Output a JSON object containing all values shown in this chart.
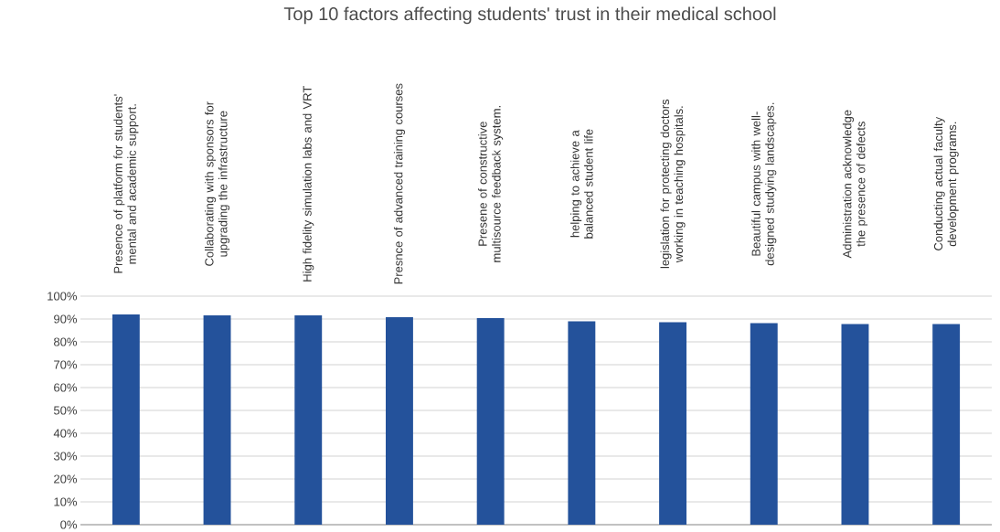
{
  "chart_data": {
    "type": "bar",
    "title": "Top 10 factors affecting students' trust in their medical school",
    "categories": [
      "Presence of platform for students' mental and academic support.",
      "Collaborating with sponsors for upgrading the infrastructure",
      "High fidelity simulation labs and VRT",
      "Presnce of advanced training courses",
      "Presene of constructive multisource feedback system.",
      "helping to achieve a balanced student life",
      "legislation for protecting doctors working in teaching hospitals.",
      "Beautiful campus with well-designed studying landscapes.",
      "Administration  acknowledge the presence of defects",
      "Conducting actual faculty development programs."
    ],
    "values": [
      92,
      91.6,
      91.6,
      90.8,
      90.4,
      89,
      88.6,
      88.2,
      87.8,
      87.8
    ],
    "color": "#24529b",
    "ylim": [
      0,
      100
    ],
    "yticks": [
      {
        "value": 0,
        "label": "0%"
      },
      {
        "value": 10,
        "label": "10%"
      },
      {
        "value": 20,
        "label": "20%"
      },
      {
        "value": 30,
        "label": "30%"
      },
      {
        "value": 40,
        "label": "40%"
      },
      {
        "value": 50,
        "label": "50%"
      },
      {
        "value": 60,
        "label": "60%"
      },
      {
        "value": 70,
        "label": "70%"
      },
      {
        "value": 80,
        "label": "80%"
      },
      {
        "value": 90,
        "label": "90%"
      },
      {
        "value": 100,
        "label": "100%"
      }
    ],
    "grid": "y"
  }
}
